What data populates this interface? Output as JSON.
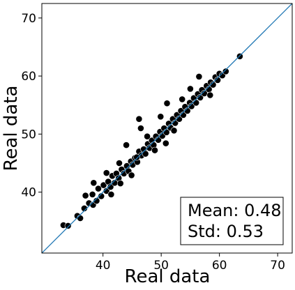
{
  "chart_data": {
    "type": "scatter",
    "title": "",
    "xlabel": "Real data",
    "ylabel": "Real data",
    "xlim": [
      29.5,
      72.5
    ],
    "ylim": [
      29.5,
      72.5
    ],
    "xticks": [
      "40",
      "50",
      "60",
      "70"
    ],
    "yticks": [
      "40",
      "50",
      "60",
      "70"
    ],
    "reference_line": "y = x",
    "grid": false,
    "marker_color": "#000000",
    "marker_edge_color": "#ffffff",
    "line_color": "#1f77b4",
    "stats_box": {
      "mean_label": "Mean: 0.48",
      "std_label": "Std: 0.53",
      "placement": "lower-right"
    },
    "points": [
      [
        33.2,
        34.3
      ],
      [
        34.0,
        34.2
      ],
      [
        35.6,
        35.9
      ],
      [
        36.1,
        35.5
      ],
      [
        36.8,
        37.2
      ],
      [
        37.0,
        39.4
      ],
      [
        37.6,
        38.1
      ],
      [
        38.3,
        37.8
      ],
      [
        38.2,
        39.6
      ],
      [
        38.9,
        38.5
      ],
      [
        39.2,
        40.6
      ],
      [
        39.7,
        39.3
      ],
      [
        40.1,
        41.2
      ],
      [
        40.6,
        40.2
      ],
      [
        40.9,
        41.8
      ],
      [
        41.3,
        40.9
      ],
      [
        41.6,
        42.8
      ],
      [
        42.0,
        41.6
      ],
      [
        42.3,
        43.2
      ],
      [
        42.7,
        42.4
      ],
      [
        43.0,
        41.5
      ],
      [
        43.2,
        43.9
      ],
      [
        43.6,
        43.2
      ],
      [
        44.1,
        44.5
      ],
      [
        44.4,
        43.6
      ],
      [
        44.8,
        45.3
      ],
      [
        45.1,
        44.7
      ],
      [
        45.5,
        45.9
      ],
      [
        45.9,
        45.2
      ],
      [
        46.2,
        47.0
      ],
      [
        46.6,
        46.3
      ],
      [
        47.0,
        47.4
      ],
      [
        47.3,
        46.6
      ],
      [
        47.7,
        48.3
      ],
      [
        48.0,
        47.6
      ],
      [
        48.4,
        48.9
      ],
      [
        48.7,
        48.1
      ],
      [
        49.1,
        49.6
      ],
      [
        49.5,
        49.0
      ],
      [
        49.8,
        50.4
      ],
      [
        50.2,
        49.7
      ],
      [
        50.5,
        51.0
      ],
      [
        50.9,
        50.3
      ],
      [
        51.3,
        51.8
      ],
      [
        51.6,
        51.1
      ],
      [
        52.0,
        52.6
      ],
      [
        52.4,
        51.9
      ],
      [
        52.7,
        53.3
      ],
      [
        53.1,
        52.6
      ],
      [
        53.4,
        54.0
      ],
      [
        53.8,
        53.3
      ],
      [
        54.1,
        54.7
      ],
      [
        54.5,
        54.0
      ],
      [
        54.9,
        55.4
      ],
      [
        55.2,
        54.8
      ],
      [
        55.6,
        56.2
      ],
      [
        56.0,
        55.4
      ],
      [
        56.3,
        56.9
      ],
      [
        56.7,
        56.3
      ],
      [
        57.0,
        57.6
      ],
      [
        57.4,
        57.0
      ],
      [
        57.8,
        58.3
      ],
      [
        58.2,
        57.7
      ],
      [
        58.5,
        58.9
      ],
      [
        58.9,
        58.5
      ],
      [
        59.3,
        59.8
      ],
      [
        59.7,
        59.3
      ],
      [
        60.0,
        60.4
      ],
      [
        60.5,
        60.1
      ],
      [
        61.1,
        60.8
      ],
      [
        63.5,
        63.4
      ],
      [
        46.2,
        52.6
      ],
      [
        46.5,
        51.0
      ],
      [
        44.0,
        48.1
      ],
      [
        45.8,
        46.0
      ],
      [
        56.5,
        59.9
      ],
      [
        51.0,
        55.3
      ],
      [
        58.4,
        56.7
      ],
      [
        47.6,
        49.6
      ],
      [
        49.9,
        53.0
      ],
      [
        52.2,
        50.6
      ],
      [
        55.0,
        57.8
      ],
      [
        42.8,
        45.0
      ],
      [
        40.6,
        43.3
      ],
      [
        38.4,
        41.6
      ],
      [
        50.8,
        48.4
      ],
      [
        53.6,
        56.0
      ],
      [
        48.9,
        47.2
      ],
      [
        44.9,
        42.9
      ],
      [
        41.4,
        39.6
      ]
    ]
  }
}
